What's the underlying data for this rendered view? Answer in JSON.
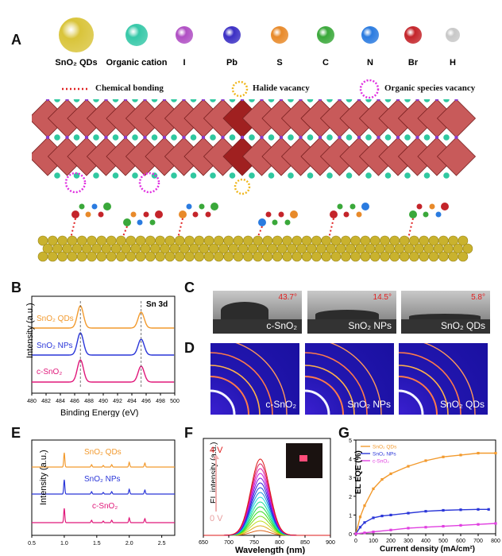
{
  "panel_labels": {
    "A": "A",
    "B": "B",
    "C": "C",
    "D": "D",
    "E": "E",
    "F": "F",
    "G": "G"
  },
  "legend_items": [
    {
      "label": "SnO₂ QDs",
      "color": "#d9c43a"
    },
    {
      "label": "Organic cation",
      "color": "#36c8a8"
    },
    {
      "label": "I",
      "color": "#b04fc4"
    },
    {
      "label": "Pb",
      "color": "#3b2fc4"
    },
    {
      "label": "S",
      "color": "#e88a2a"
    },
    {
      "label": "C",
      "color": "#3aa83a"
    },
    {
      "label": "N",
      "color": "#2a7be0"
    },
    {
      "label": "Br",
      "color": "#c4242a"
    },
    {
      "label": "H",
      "color": "#c8c8c8"
    }
  ],
  "schematic_legend": {
    "chemical_bonding": "Chemical bonding",
    "halide_vacancy": "Halide vacancy",
    "organic_vacancy": "Organic species vacancy"
  },
  "panel_B": {
    "title": "Sn 3d",
    "ylabel": "Intensity (a.u.)",
    "xlabel": "Binding Energy (eV)",
    "series_labels": [
      "SnO₂ QDs",
      "SnO₂ NPs",
      "c-SnO₂"
    ],
    "xticks": [
      "480",
      "482",
      "484",
      "486",
      "488",
      "490",
      "492",
      "494",
      "496",
      "498",
      "500"
    ]
  },
  "panel_C": {
    "angles": [
      "43.7°",
      "14.5°",
      "5.8°"
    ],
    "names": [
      "c-SnO₂",
      "SnO₂ NPs",
      "SnO₂ QDs"
    ]
  },
  "panel_D": {
    "names": [
      "c-SnO₂",
      "SnO₂ NPs",
      "SnO₂ QDs"
    ]
  },
  "panel_E": {
    "ylabel": "Intensity (a.u.)",
    "series_labels": [
      "SnO₂ QDs",
      "SnO₂ NPs",
      "c-SnO₂"
    ],
    "xticks": [
      "0.5",
      "1.0",
      "1.5",
      "2.0",
      "2.5"
    ]
  },
  "panel_F": {
    "ylabel": "EL intensity (a.u.)",
    "xlabel": "Wavelength (nm)",
    "top_label": "4 V",
    "bottom_label": "0 V",
    "xticks": [
      "650",
      "700",
      "750",
      "800",
      "850",
      "900"
    ]
  },
  "chart_data": [
    {
      "type": "line",
      "title": "",
      "xlabel": "Current density (mA/cm²)",
      "ylabel": "EL EQE (%)",
      "xlim": [
        0,
        800
      ],
      "ylim": [
        0,
        5
      ],
      "xticks": [
        "0",
        "100",
        "200",
        "300",
        "400",
        "500",
        "600",
        "700",
        "800"
      ],
      "yticks": [
        "0",
        "1",
        "2",
        "3",
        "4",
        "5"
      ],
      "legend": "top-left",
      "series": [
        {
          "name": "SnO₂ QDs",
          "color": "#f29a2e",
          "x": [
            0,
            25,
            50,
            100,
            150,
            200,
            300,
            400,
            500,
            600,
            700,
            800
          ],
          "y": [
            0,
            0.9,
            1.5,
            2.4,
            2.9,
            3.2,
            3.6,
            3.9,
            4.1,
            4.2,
            4.3,
            4.3
          ]
        },
        {
          "name": "SnO₂ NPs",
          "color": "#2a36d8",
          "x": [
            0,
            25,
            50,
            100,
            150,
            200,
            300,
            400,
            500,
            600,
            700,
            760
          ],
          "y": [
            0,
            0.35,
            0.6,
            0.85,
            0.95,
            1.0,
            1.1,
            1.2,
            1.25,
            1.28,
            1.3,
            1.3
          ]
        },
        {
          "name": "c-SnO₂",
          "color": "#e040e0",
          "x": [
            0,
            50,
            100,
            200,
            300,
            400,
            500,
            600,
            700,
            800
          ],
          "y": [
            0,
            0.05,
            0.1,
            0.2,
            0.3,
            0.35,
            0.4,
            0.45,
            0.5,
            0.55
          ]
        }
      ]
    }
  ]
}
